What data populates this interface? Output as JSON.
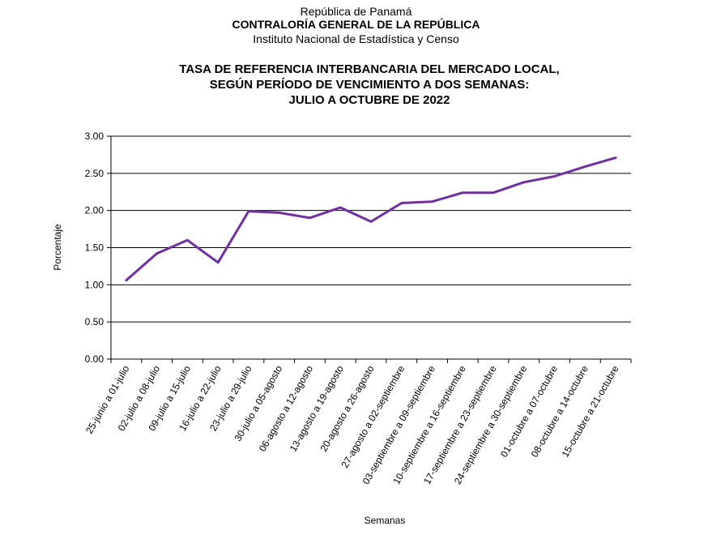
{
  "header": {
    "line1": "República de Panamá",
    "line2": "CONTRALORÍA GENERAL DE LA REPÚBLICA",
    "line3": "Instituto Nacional de Estadística y Censo"
  },
  "chart_data": {
    "type": "line",
    "title": [
      "TASA DE REFERENCIA INTERBANCARIA DEL MERCADO LOCAL,",
      "SEGÚN PERÍODO DE VENCIMIENTO A DOS SEMANAS:",
      "JULIO A OCTUBRE DE 2022"
    ],
    "xlabel": "Semanas",
    "ylabel": "Porcentaje",
    "ylim": [
      0,
      3
    ],
    "yticks": [
      "0.00",
      "0.50",
      "1.00",
      "1.50",
      "2.00",
      "2.50",
      "3.00"
    ],
    "grid": true,
    "line_color": "#7030a0",
    "categories": [
      "25-junio a 01-julio",
      "02-julio a 08-julio",
      "09-julio a 15-julio",
      "16-julio a 22-julio",
      "23-julio a 29-julio",
      "30-julio a 05-agosto",
      "06-agosto a 12-agosto",
      "13-agosto a 19-agosto",
      "20-agosto a 26-agosto",
      "27-agosto a 02-septiembre",
      "03-septiembre  a 09-septiembre",
      "10-septiembre  a 16-septiembre",
      "17-septiembre  a 23-septiembre",
      "24-septiembre  a 30-septiembre",
      "01-octubre  a 07-octubre",
      "08-octubre  a 14-octubre",
      "15-octubre  a 21-octubre"
    ],
    "values": [
      1.06,
      1.42,
      1.6,
      1.3,
      1.99,
      1.97,
      1.9,
      2.04,
      1.85,
      2.1,
      2.12,
      2.24,
      2.24,
      2.38,
      2.46,
      2.59,
      2.71
    ]
  }
}
